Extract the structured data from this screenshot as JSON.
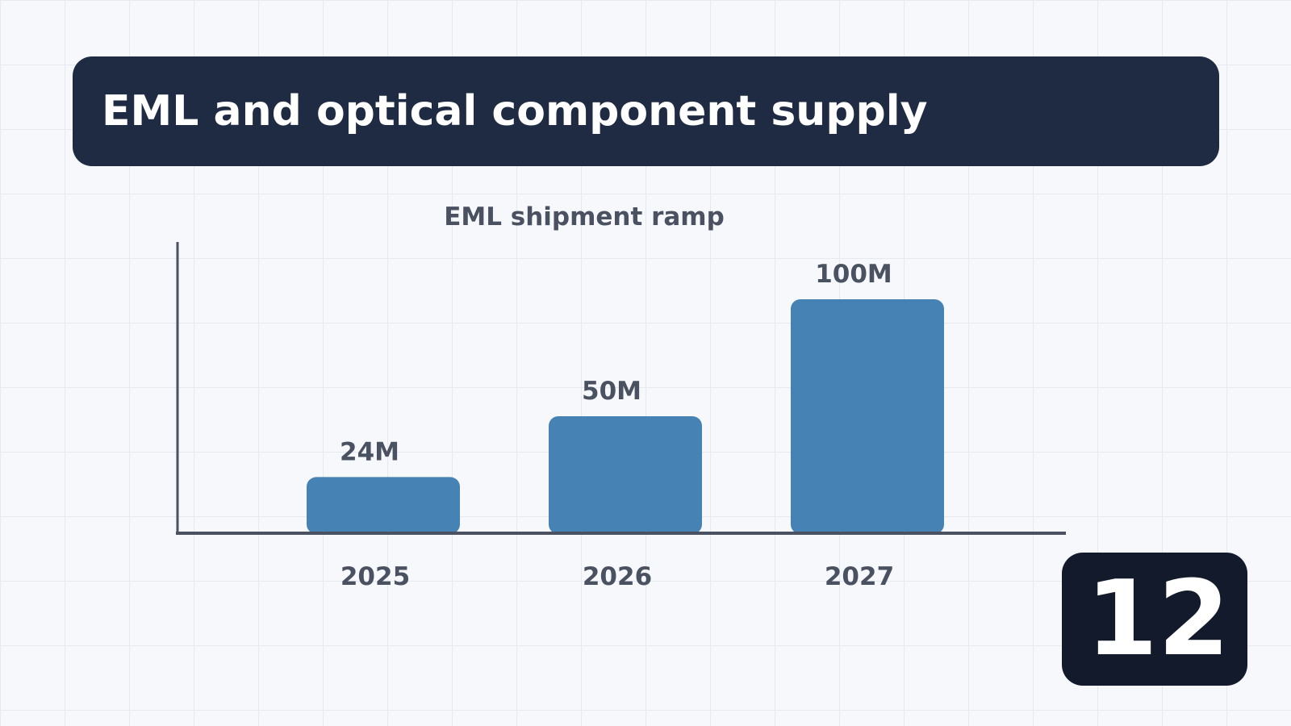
{
  "slide": {
    "title": "EML and optical component supply",
    "number": "12"
  },
  "chart_data": {
    "type": "bar",
    "title": "EML shipment ramp",
    "xlabel": "",
    "ylabel": "",
    "categories": [
      "2025",
      "2026",
      "2027"
    ],
    "values": [
      24,
      50,
      100
    ],
    "value_labels": [
      "24M",
      "50M",
      "100M"
    ],
    "unit": "M",
    "ylim": [
      0,
      120
    ],
    "grid": false,
    "legend": "none",
    "bar_color": "#4682b4",
    "axis_color": "#4a5160",
    "label_color": "#4a5160"
  }
}
